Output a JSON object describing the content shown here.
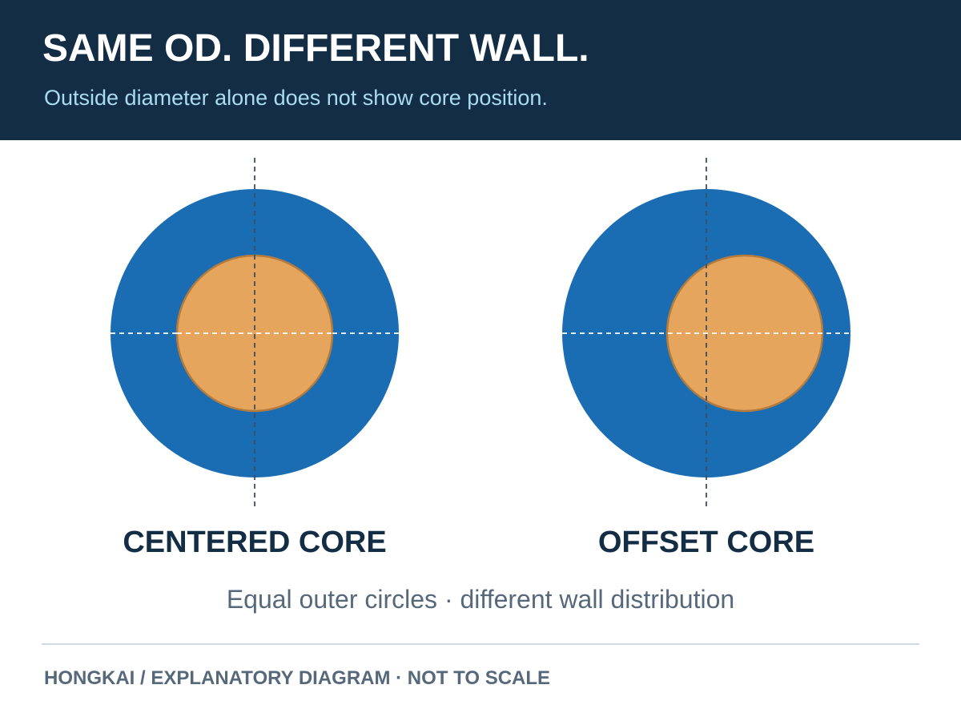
{
  "header": {
    "title": "SAME OD. DIFFERENT WALL.",
    "subtitle": "Outside diameter alone does not show core position."
  },
  "diagrams": {
    "left": {
      "label": "CENTERED CORE"
    },
    "right": {
      "label": "OFFSET CORE"
    }
  },
  "caption": "Equal outer circles · different wall distribution",
  "footer": "HONGKAI / EXPLANATORY DIAGRAM · NOT TO SCALE",
  "colors": {
    "header_bg": "#132d45",
    "outer_circle": "#1a6db3",
    "core_fill": "#e5a55c",
    "core_stroke": "#b57b3c"
  }
}
